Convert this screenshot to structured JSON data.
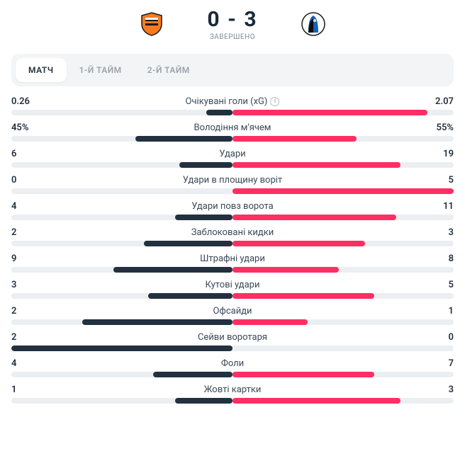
{
  "colors": {
    "home_bar": "#22303f",
    "away_bar": "#ff2e63",
    "track": "#eceff1",
    "tabs_bg": "#f2f4f6",
    "text_muted": "#9aa4ad"
  },
  "header": {
    "score_home": "0",
    "score_away": "3",
    "status": "ЗАВЕРШЕНО",
    "home_team_icon": "shakhtar-logo",
    "away_team_icon": "atalanta-logo"
  },
  "tabs": [
    {
      "label": "МАТЧ",
      "active": true
    },
    {
      "label": "1-Й ТАЙМ",
      "active": false
    },
    {
      "label": "2-Й ТАЙМ",
      "active": false
    }
  ],
  "bar_scale_percent_per_side": 50,
  "stats": [
    {
      "title": "Очікувані голи (xG)",
      "home": "0.26",
      "away": "2.07",
      "home_pct": 6,
      "away_pct": 44,
      "info": true
    },
    {
      "title": "Володіння м'ячем",
      "home": "45%",
      "away": "55%",
      "home_pct": 22,
      "away_pct": 28
    },
    {
      "title": "Удари",
      "home": "6",
      "away": "19",
      "home_pct": 12,
      "away_pct": 38
    },
    {
      "title": "Удари в площину воріт",
      "home": "0",
      "away": "5",
      "home_pct": 0,
      "away_pct": 50
    },
    {
      "title": "Удари повз ворота",
      "home": "4",
      "away": "11",
      "home_pct": 13,
      "away_pct": 37
    },
    {
      "title": "Заблоковані кидки",
      "home": "2",
      "away": "3",
      "home_pct": 20,
      "away_pct": 30
    },
    {
      "title": "Штрафні удари",
      "home": "9",
      "away": "8",
      "home_pct": 27,
      "away_pct": 24
    },
    {
      "title": "Кутові удари",
      "home": "3",
      "away": "5",
      "home_pct": 19,
      "away_pct": 32
    },
    {
      "title": "Офсайди",
      "home": "2",
      "away": "1",
      "home_pct": 34,
      "away_pct": 17
    },
    {
      "title": "Сейви воротаря",
      "home": "2",
      "away": "0",
      "home_pct": 50,
      "away_pct": 0
    },
    {
      "title": "Фоли",
      "home": "4",
      "away": "7",
      "home_pct": 18,
      "away_pct": 32
    },
    {
      "title": "Жовті картки",
      "home": "1",
      "away": "3",
      "home_pct": 13,
      "away_pct": 38
    }
  ]
}
